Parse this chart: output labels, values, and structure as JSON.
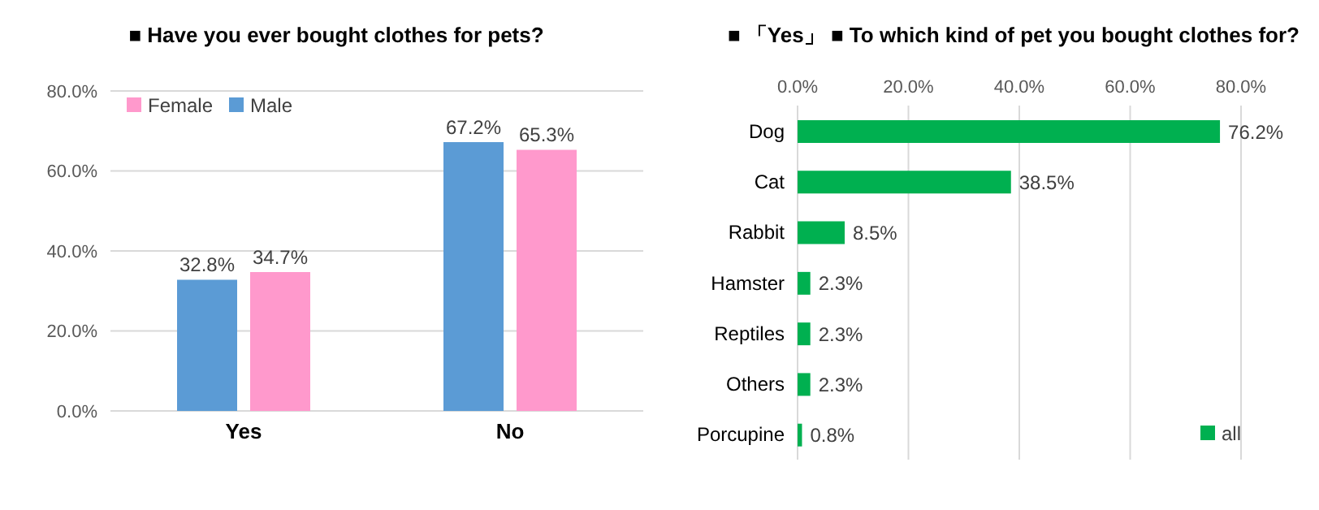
{
  "chart_data": [
    {
      "type": "bar",
      "title": "■ Have you ever bought clothes for pets?",
      "categories": [
        "Yes",
        "No"
      ],
      "series": [
        {
          "name": "Male",
          "color": "#5b9bd5",
          "values": [
            32.8,
            67.2
          ],
          "value_labels": [
            "32.8%",
            "67.2%"
          ]
        },
        {
          "name": "Female",
          "color": "#ff99cc",
          "values": [
            34.7,
            65.3
          ],
          "value_labels": [
            "34.7%",
            "65.3%"
          ]
        }
      ],
      "ylim": [
        0,
        80
      ],
      "yticks": [
        {
          "value": 0,
          "label": "0.0%"
        },
        {
          "value": 20,
          "label": "20.0%"
        },
        {
          "value": 40,
          "label": "40.0%"
        },
        {
          "value": 60,
          "label": "60.0%"
        },
        {
          "value": 80,
          "label": "80.0%"
        }
      ],
      "grid": "y",
      "legend": "top left"
    },
    {
      "type": "bar",
      "orientation": "horizontal",
      "title": "■ 「Yes」 ■ To which kind of pet you bought clothes for?",
      "categories": [
        "Dog",
        "Cat",
        "Rabbit",
        "Hamster",
        "Reptiles",
        "Others",
        "Porcupine"
      ],
      "series": [
        {
          "name": "all",
          "color": "#00b050",
          "values": [
            76.2,
            38.5,
            8.5,
            2.3,
            2.3,
            2.3,
            0.8
          ],
          "value_labels": [
            "76.2%",
            "38.5%",
            "8.5%",
            "2.3%",
            "2.3%",
            "2.3%",
            "0.8%"
          ]
        }
      ],
      "xlim": [
        0,
        80
      ],
      "xticks": [
        {
          "value": 0,
          "label": "0.0%"
        },
        {
          "value": 20,
          "label": "20.0%"
        },
        {
          "value": 40,
          "label": "40.0%"
        },
        {
          "value": 60,
          "label": "60.0%"
        },
        {
          "value": 80,
          "label": "80.0%"
        }
      ],
      "grid": "x",
      "legend": "bottom right"
    }
  ]
}
